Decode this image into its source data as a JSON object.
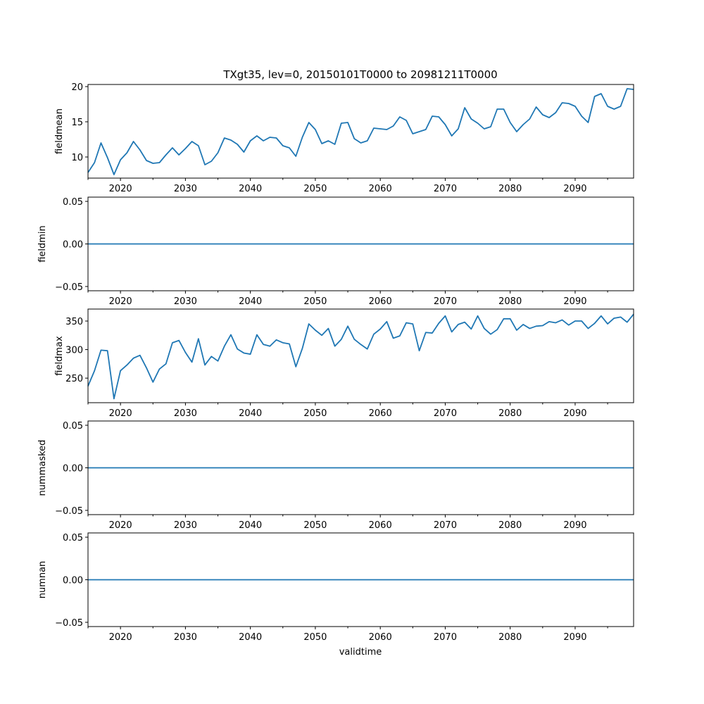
{
  "chart_data": {
    "type": "line",
    "title": "TXgt35, lev=0, 20150101T0000 to 20981211T0000",
    "xlabel": "validtime",
    "color": "#1f77b4",
    "xlim": [
      2015,
      2099
    ],
    "xticks_major": [
      2020,
      2030,
      2040,
      2050,
      2060,
      2070,
      2080,
      2090
    ],
    "xticks_minor": [
      2015,
      2025,
      2035,
      2045,
      2055,
      2065,
      2075,
      2085,
      2095
    ],
    "x": [
      2015,
      2016,
      2017,
      2018,
      2019,
      2020,
      2021,
      2022,
      2023,
      2024,
      2025,
      2026,
      2027,
      2028,
      2029,
      2030,
      2031,
      2032,
      2033,
      2034,
      2035,
      2036,
      2037,
      2038,
      2039,
      2040,
      2041,
      2042,
      2043,
      2044,
      2045,
      2046,
      2047,
      2048,
      2049,
      2050,
      2051,
      2052,
      2053,
      2054,
      2055,
      2056,
      2057,
      2058,
      2059,
      2060,
      2061,
      2062,
      2063,
      2064,
      2065,
      2066,
      2067,
      2068,
      2069,
      2070,
      2071,
      2072,
      2073,
      2074,
      2075,
      2076,
      2077,
      2078,
      2079,
      2080,
      2081,
      2082,
      2083,
      2084,
      2085,
      2086,
      2087,
      2088,
      2089,
      2090,
      2091,
      2092,
      2093,
      2094,
      2095,
      2096,
      2097,
      2098,
      2099
    ],
    "panels": [
      {
        "ylabel": "fieldmean",
        "ylim": [
          7.0,
          20.3
        ],
        "yticks": [
          10,
          15,
          20
        ],
        "ytick_labels": [
          "10",
          "15",
          "20"
        ],
        "values": [
          7.8,
          9.2,
          12.0,
          9.9,
          7.5,
          9.6,
          10.6,
          12.2,
          11.0,
          9.5,
          9.1,
          9.2,
          10.3,
          11.3,
          10.3,
          11.2,
          12.2,
          11.6,
          8.9,
          9.4,
          10.6,
          12.7,
          12.4,
          11.8,
          10.7,
          12.3,
          13.0,
          12.3,
          12.8,
          12.7,
          11.6,
          11.3,
          10.1,
          12.8,
          14.9,
          13.9,
          11.9,
          12.3,
          11.8,
          14.8,
          14.9,
          12.6,
          12.0,
          12.3,
          14.1,
          14.0,
          13.9,
          14.4,
          15.7,
          15.2,
          13.3,
          13.6,
          13.9,
          15.8,
          15.7,
          14.6,
          13.0,
          14.0,
          17.0,
          15.4,
          14.8,
          14.0,
          14.3,
          16.8,
          16.8,
          14.9,
          13.6,
          14.6,
          15.4,
          17.1,
          16.0,
          15.6,
          16.3,
          17.7,
          17.6,
          17.2,
          15.8,
          14.9,
          18.6,
          19.0,
          17.2,
          16.8,
          17.2,
          19.7,
          19.6
        ]
      },
      {
        "ylabel": "fieldmin",
        "ylim": [
          -0.055,
          0.055
        ],
        "yticks": [
          -0.05,
          0.0,
          0.05
        ],
        "ytick_labels": [
          "−0.05",
          "0.00",
          "0.05"
        ],
        "values": [
          0,
          0,
          0,
          0,
          0,
          0,
          0,
          0,
          0,
          0,
          0,
          0,
          0,
          0,
          0,
          0,
          0,
          0,
          0,
          0,
          0,
          0,
          0,
          0,
          0,
          0,
          0,
          0,
          0,
          0,
          0,
          0,
          0,
          0,
          0,
          0,
          0,
          0,
          0,
          0,
          0,
          0,
          0,
          0,
          0,
          0,
          0,
          0,
          0,
          0,
          0,
          0,
          0,
          0,
          0,
          0,
          0,
          0,
          0,
          0,
          0,
          0,
          0,
          0,
          0,
          0,
          0,
          0,
          0,
          0,
          0,
          0,
          0,
          0,
          0,
          0,
          0,
          0,
          0,
          0,
          0,
          0,
          0,
          0,
          0
        ]
      },
      {
        "ylabel": "fieldmax",
        "ylim": [
          207,
          371
        ],
        "yticks": [
          250,
          300,
          350
        ],
        "ytick_labels": [
          "250",
          "300",
          "350"
        ],
        "values": [
          236,
          263,
          299,
          298,
          214,
          263,
          273,
          285,
          290,
          268,
          243,
          266,
          275,
          312,
          316,
          295,
          278,
          319,
          273,
          288,
          280,
          306,
          326,
          301,
          294,
          292,
          326,
          309,
          306,
          317,
          312,
          310,
          270,
          302,
          345,
          334,
          325,
          337,
          306,
          318,
          341,
          318,
          309,
          301,
          327,
          336,
          349,
          320,
          324,
          347,
          345,
          298,
          330,
          329,
          346,
          359,
          331,
          344,
          348,
          336,
          359,
          337,
          327,
          335,
          354,
          354,
          334,
          344,
          337,
          341,
          342,
          349,
          347,
          352,
          343,
          350,
          350,
          337,
          346,
          359,
          345,
          355,
          357,
          348,
          362
        ]
      },
      {
        "ylabel": "nummasked",
        "ylim": [
          -0.055,
          0.055
        ],
        "yticks": [
          -0.05,
          0.0,
          0.05
        ],
        "ytick_labels": [
          "−0.05",
          "0.00",
          "0.05"
        ],
        "values": [
          0,
          0,
          0,
          0,
          0,
          0,
          0,
          0,
          0,
          0,
          0,
          0,
          0,
          0,
          0,
          0,
          0,
          0,
          0,
          0,
          0,
          0,
          0,
          0,
          0,
          0,
          0,
          0,
          0,
          0,
          0,
          0,
          0,
          0,
          0,
          0,
          0,
          0,
          0,
          0,
          0,
          0,
          0,
          0,
          0,
          0,
          0,
          0,
          0,
          0,
          0,
          0,
          0,
          0,
          0,
          0,
          0,
          0,
          0,
          0,
          0,
          0,
          0,
          0,
          0,
          0,
          0,
          0,
          0,
          0,
          0,
          0,
          0,
          0,
          0,
          0,
          0,
          0,
          0,
          0,
          0,
          0,
          0,
          0,
          0
        ]
      },
      {
        "ylabel": "numnan",
        "ylim": [
          -0.055,
          0.055
        ],
        "yticks": [
          -0.05,
          0.0,
          0.05
        ],
        "ytick_labels": [
          "−0.05",
          "0.00",
          "0.05"
        ],
        "values": [
          0,
          0,
          0,
          0,
          0,
          0,
          0,
          0,
          0,
          0,
          0,
          0,
          0,
          0,
          0,
          0,
          0,
          0,
          0,
          0,
          0,
          0,
          0,
          0,
          0,
          0,
          0,
          0,
          0,
          0,
          0,
          0,
          0,
          0,
          0,
          0,
          0,
          0,
          0,
          0,
          0,
          0,
          0,
          0,
          0,
          0,
          0,
          0,
          0,
          0,
          0,
          0,
          0,
          0,
          0,
          0,
          0,
          0,
          0,
          0,
          0,
          0,
          0,
          0,
          0,
          0,
          0,
          0,
          0,
          0,
          0,
          0,
          0,
          0,
          0,
          0,
          0,
          0,
          0,
          0,
          0,
          0,
          0,
          0,
          0
        ]
      }
    ]
  }
}
